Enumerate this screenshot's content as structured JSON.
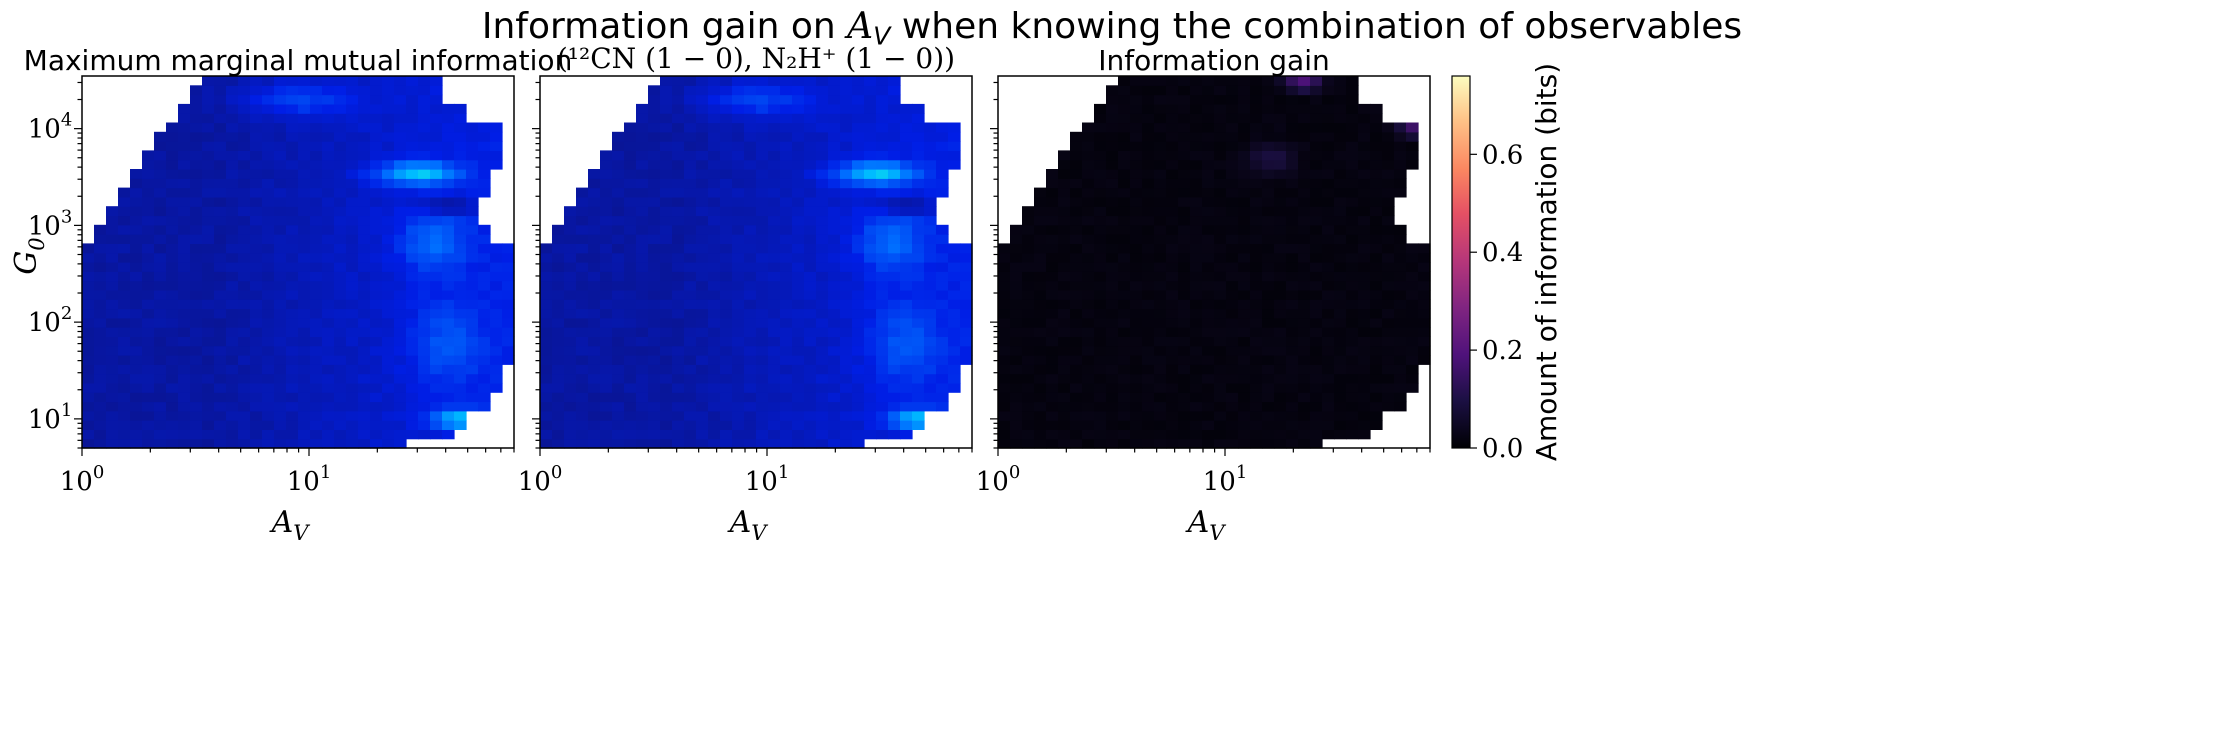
{
  "suptitle": {
    "prefix": "Information gain on ",
    "var": "A",
    "var_sub": "V",
    "suffix": " when knowing the combination of observables"
  },
  "panel_titles": {
    "left": "Maximum marginal mutual information",
    "middle": "(¹²CN (1 − 0), N₂H⁺ (1 − 0))",
    "right": "Information gain"
  },
  "axes": {
    "x_var": "A",
    "x_sub": "V",
    "y_var": "G",
    "y_sub": "0",
    "x_ticks": [
      {
        "base": "10",
        "exp": "0"
      },
      {
        "base": "10",
        "exp": "1"
      }
    ],
    "y_ticks": [
      {
        "base": "10",
        "exp": "1"
      },
      {
        "base": "10",
        "exp": "2"
      },
      {
        "base": "10",
        "exp": "3"
      },
      {
        "base": "10",
        "exp": "4"
      }
    ]
  },
  "colorbar": {
    "label": "Amount of information (bits)",
    "ticks": [
      "0.0",
      "0.2",
      "0.4",
      "0.6"
    ]
  },
  "chart_data": [
    {
      "type": "heatmap",
      "title": "Maximum marginal mutual information",
      "xlabel": "A_V",
      "ylabel": "G_0",
      "xscale": "log",
      "yscale": "log",
      "xlim": [
        1,
        80
      ],
      "ylim": [
        5,
        35000
      ],
      "colormap": "jet-blue",
      "value_range": "approx 0.05 – 0.55 bits"
    },
    {
      "type": "heatmap",
      "title": "(12CN(1-0), N2H+(1-0))",
      "xlabel": "A_V",
      "xscale": "log",
      "yscale": "log",
      "xlim": [
        1,
        80
      ],
      "ylim": [
        5,
        35000
      ],
      "colormap": "jet-blue",
      "value_range": "approx 0.05 – 0.55 bits"
    },
    {
      "type": "heatmap",
      "title": "Information gain",
      "xlabel": "A_V",
      "xscale": "log",
      "yscale": "log",
      "xlim": [
        1,
        80
      ],
      "ylim": [
        5,
        35000
      ],
      "colormap": "magma",
      "value_range": [
        0.0,
        0.76
      ]
    }
  ]
}
